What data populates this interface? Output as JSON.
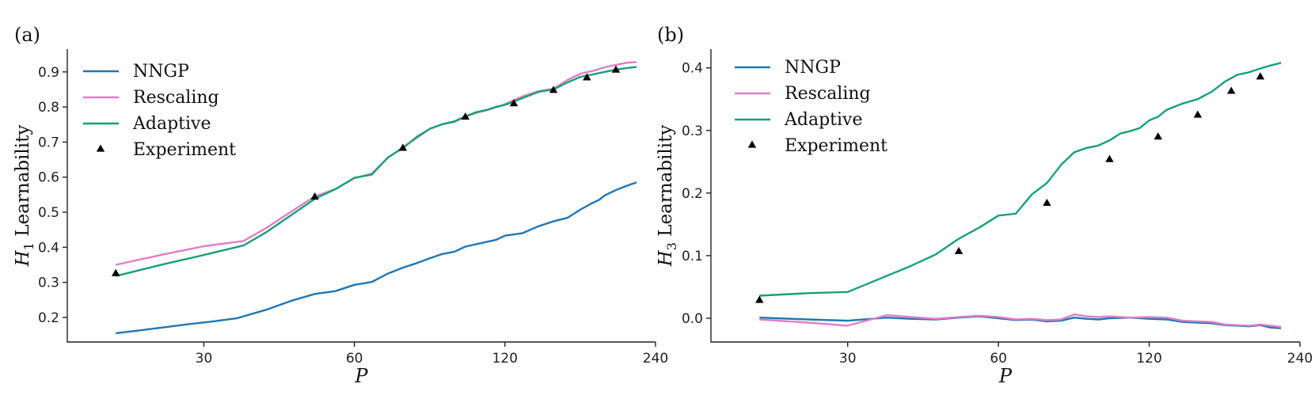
{
  "colors": {
    "NNGP": "#1f77b4",
    "Rescaling": "#e07ec8",
    "Adaptive": "#17a07a",
    "Experiment": "#000000"
  },
  "chart_data": [
    {
      "type": "line",
      "panel_label": "(a)",
      "xlabel": "P",
      "ylabel_sym": "H",
      "ylabel_sub": "1",
      "ylabel_text": " Learnability",
      "x_scale": "log",
      "xlim": [
        16,
        240
      ],
      "ylim": [
        0.13,
        0.965
      ],
      "x_ticks": [
        30,
        60,
        120,
        240
      ],
      "y_ticks": [
        0.2,
        0.3,
        0.4,
        0.5,
        0.6,
        0.7,
        0.8,
        0.9
      ],
      "legend_position": "upper-left",
      "series": [
        {
          "name": "NNGP",
          "kind": "line",
          "color": "#1f77b4",
          "x": [
            20,
            22,
            25,
            28,
            31,
            35,
            40,
            45,
            50,
            55,
            60,
            65,
            70,
            75,
            80,
            85,
            90,
            95,
            100,
            110,
            115,
            120,
            130,
            140,
            150,
            160,
            170,
            180,
            185,
            190,
            200,
            210,
            220
          ],
          "y": [
            0.155,
            0.162,
            0.172,
            0.181,
            0.188,
            0.198,
            0.222,
            0.248,
            0.267,
            0.275,
            0.293,
            0.301,
            0.325,
            0.342,
            0.355,
            0.369,
            0.381,
            0.387,
            0.402,
            0.415,
            0.421,
            0.433,
            0.44,
            0.46,
            0.474,
            0.484,
            0.508,
            0.527,
            0.535,
            0.548,
            0.563,
            0.575,
            0.585
          ]
        },
        {
          "name": "Rescaling",
          "kind": "line",
          "color": "#e07ec8",
          "x": [
            20,
            25,
            30,
            36,
            40,
            45,
            50,
            55,
            60,
            65,
            70,
            75,
            80,
            85,
            90,
            95,
            100,
            105,
            110,
            115,
            120,
            130,
            140,
            150,
            160,
            170,
            180,
            190,
            200,
            210,
            220
          ],
          "y": [
            0.35,
            0.38,
            0.403,
            0.418,
            0.455,
            0.503,
            0.545,
            0.566,
            0.597,
            0.61,
            0.655,
            0.685,
            0.712,
            0.738,
            0.751,
            0.757,
            0.772,
            0.783,
            0.79,
            0.799,
            0.808,
            0.83,
            0.845,
            0.852,
            0.877,
            0.895,
            0.903,
            0.913,
            0.92,
            0.926,
            0.928
          ]
        },
        {
          "name": "Adaptive",
          "kind": "line",
          "color": "#17a07a",
          "x": [
            20,
            25,
            30,
            36,
            40,
            45,
            50,
            55,
            60,
            65,
            70,
            75,
            80,
            85,
            90,
            95,
            100,
            105,
            110,
            115,
            120,
            130,
            140,
            150,
            160,
            170,
            180,
            190,
            200,
            210,
            220
          ],
          "y": [
            0.318,
            0.352,
            0.378,
            0.405,
            0.443,
            0.493,
            0.538,
            0.566,
            0.598,
            0.607,
            0.656,
            0.683,
            0.715,
            0.738,
            0.751,
            0.759,
            0.773,
            0.785,
            0.791,
            0.8,
            0.806,
            0.825,
            0.843,
            0.85,
            0.87,
            0.886,
            0.893,
            0.9,
            0.906,
            0.911,
            0.914
          ]
        },
        {
          "name": "Experiment",
          "kind": "scatter",
          "color": "#000000",
          "x": [
            20,
            50,
            75,
            100,
            125,
            150,
            175,
            200
          ],
          "y": [
            0.326,
            0.544,
            0.683,
            0.772,
            0.81,
            0.848,
            0.884,
            0.906
          ]
        }
      ]
    },
    {
      "type": "line",
      "panel_label": "(b)",
      "xlabel": "P",
      "ylabel_sym": "H",
      "ylabel_sub": "3",
      "ylabel_text": " Learnability",
      "x_scale": "log",
      "xlim": [
        16,
        240
      ],
      "ylim": [
        -0.038,
        0.43
      ],
      "x_ticks": [
        30,
        60,
        120,
        240
      ],
      "y_ticks": [
        0.0,
        0.1,
        0.2,
        0.3,
        0.4
      ],
      "legend_position": "upper-left",
      "series": [
        {
          "name": "NNGP",
          "kind": "line",
          "color": "#1f77b4",
          "x": [
            20,
            25,
            30,
            36,
            40,
            45,
            50,
            55,
            60,
            65,
            70,
            75,
            80,
            85,
            90,
            95,
            100,
            110,
            120,
            130,
            140,
            150,
            160,
            170,
            180,
            190,
            200,
            210,
            220
          ],
          "y": [
            0.001,
            -0.002,
            -0.004,
            0.001,
            -0.001,
            -0.002,
            0.001,
            0.003,
            0.0,
            -0.003,
            -0.002,
            -0.005,
            -0.004,
            0.001,
            -0.001,
            -0.002,
            0.0,
            0.001,
            -0.001,
            -0.002,
            -0.006,
            -0.007,
            -0.008,
            -0.011,
            -0.012,
            -0.013,
            -0.011,
            -0.015,
            -0.016
          ]
        },
        {
          "name": "Rescaling",
          "kind": "line",
          "color": "#e07ec8",
          "x": [
            20,
            25,
            30,
            36,
            40,
            45,
            50,
            55,
            60,
            65,
            70,
            75,
            80,
            85,
            90,
            95,
            100,
            110,
            120,
            130,
            140,
            150,
            160,
            170,
            180,
            190,
            200,
            210,
            220
          ],
          "y": [
            -0.002,
            -0.007,
            -0.012,
            0.005,
            0.002,
            -0.001,
            0.002,
            0.004,
            0.002,
            -0.002,
            -0.001,
            -0.003,
            -0.002,
            0.006,
            0.003,
            0.002,
            0.003,
            0.001,
            0.002,
            0.001,
            -0.004,
            -0.005,
            -0.006,
            -0.01,
            -0.011,
            -0.012,
            -0.01,
            -0.012,
            -0.014
          ]
        },
        {
          "name": "Adaptive",
          "kind": "line",
          "color": "#17a07a",
          "x": [
            20,
            25,
            30,
            36,
            40,
            45,
            50,
            55,
            60,
            65,
            70,
            75,
            80,
            85,
            90,
            95,
            100,
            105,
            110,
            115,
            120,
            125,
            130,
            140,
            150,
            160,
            170,
            180,
            190,
            200,
            210,
            220
          ],
          "y": [
            0.036,
            0.04,
            0.042,
            0.068,
            0.083,
            0.102,
            0.127,
            0.145,
            0.164,
            0.167,
            0.198,
            0.216,
            0.245,
            0.265,
            0.272,
            0.276,
            0.284,
            0.295,
            0.299,
            0.304,
            0.316,
            0.322,
            0.333,
            0.343,
            0.35,
            0.362,
            0.378,
            0.389,
            0.393,
            0.399,
            0.404,
            0.408
          ]
        },
        {
          "name": "Experiment",
          "kind": "scatter",
          "color": "#000000",
          "x": [
            20,
            50,
            75,
            100,
            125,
            150,
            175,
            200
          ],
          "y": [
            0.029,
            0.107,
            0.184,
            0.254,
            0.29,
            0.325,
            0.363,
            0.386
          ]
        }
      ]
    }
  ]
}
